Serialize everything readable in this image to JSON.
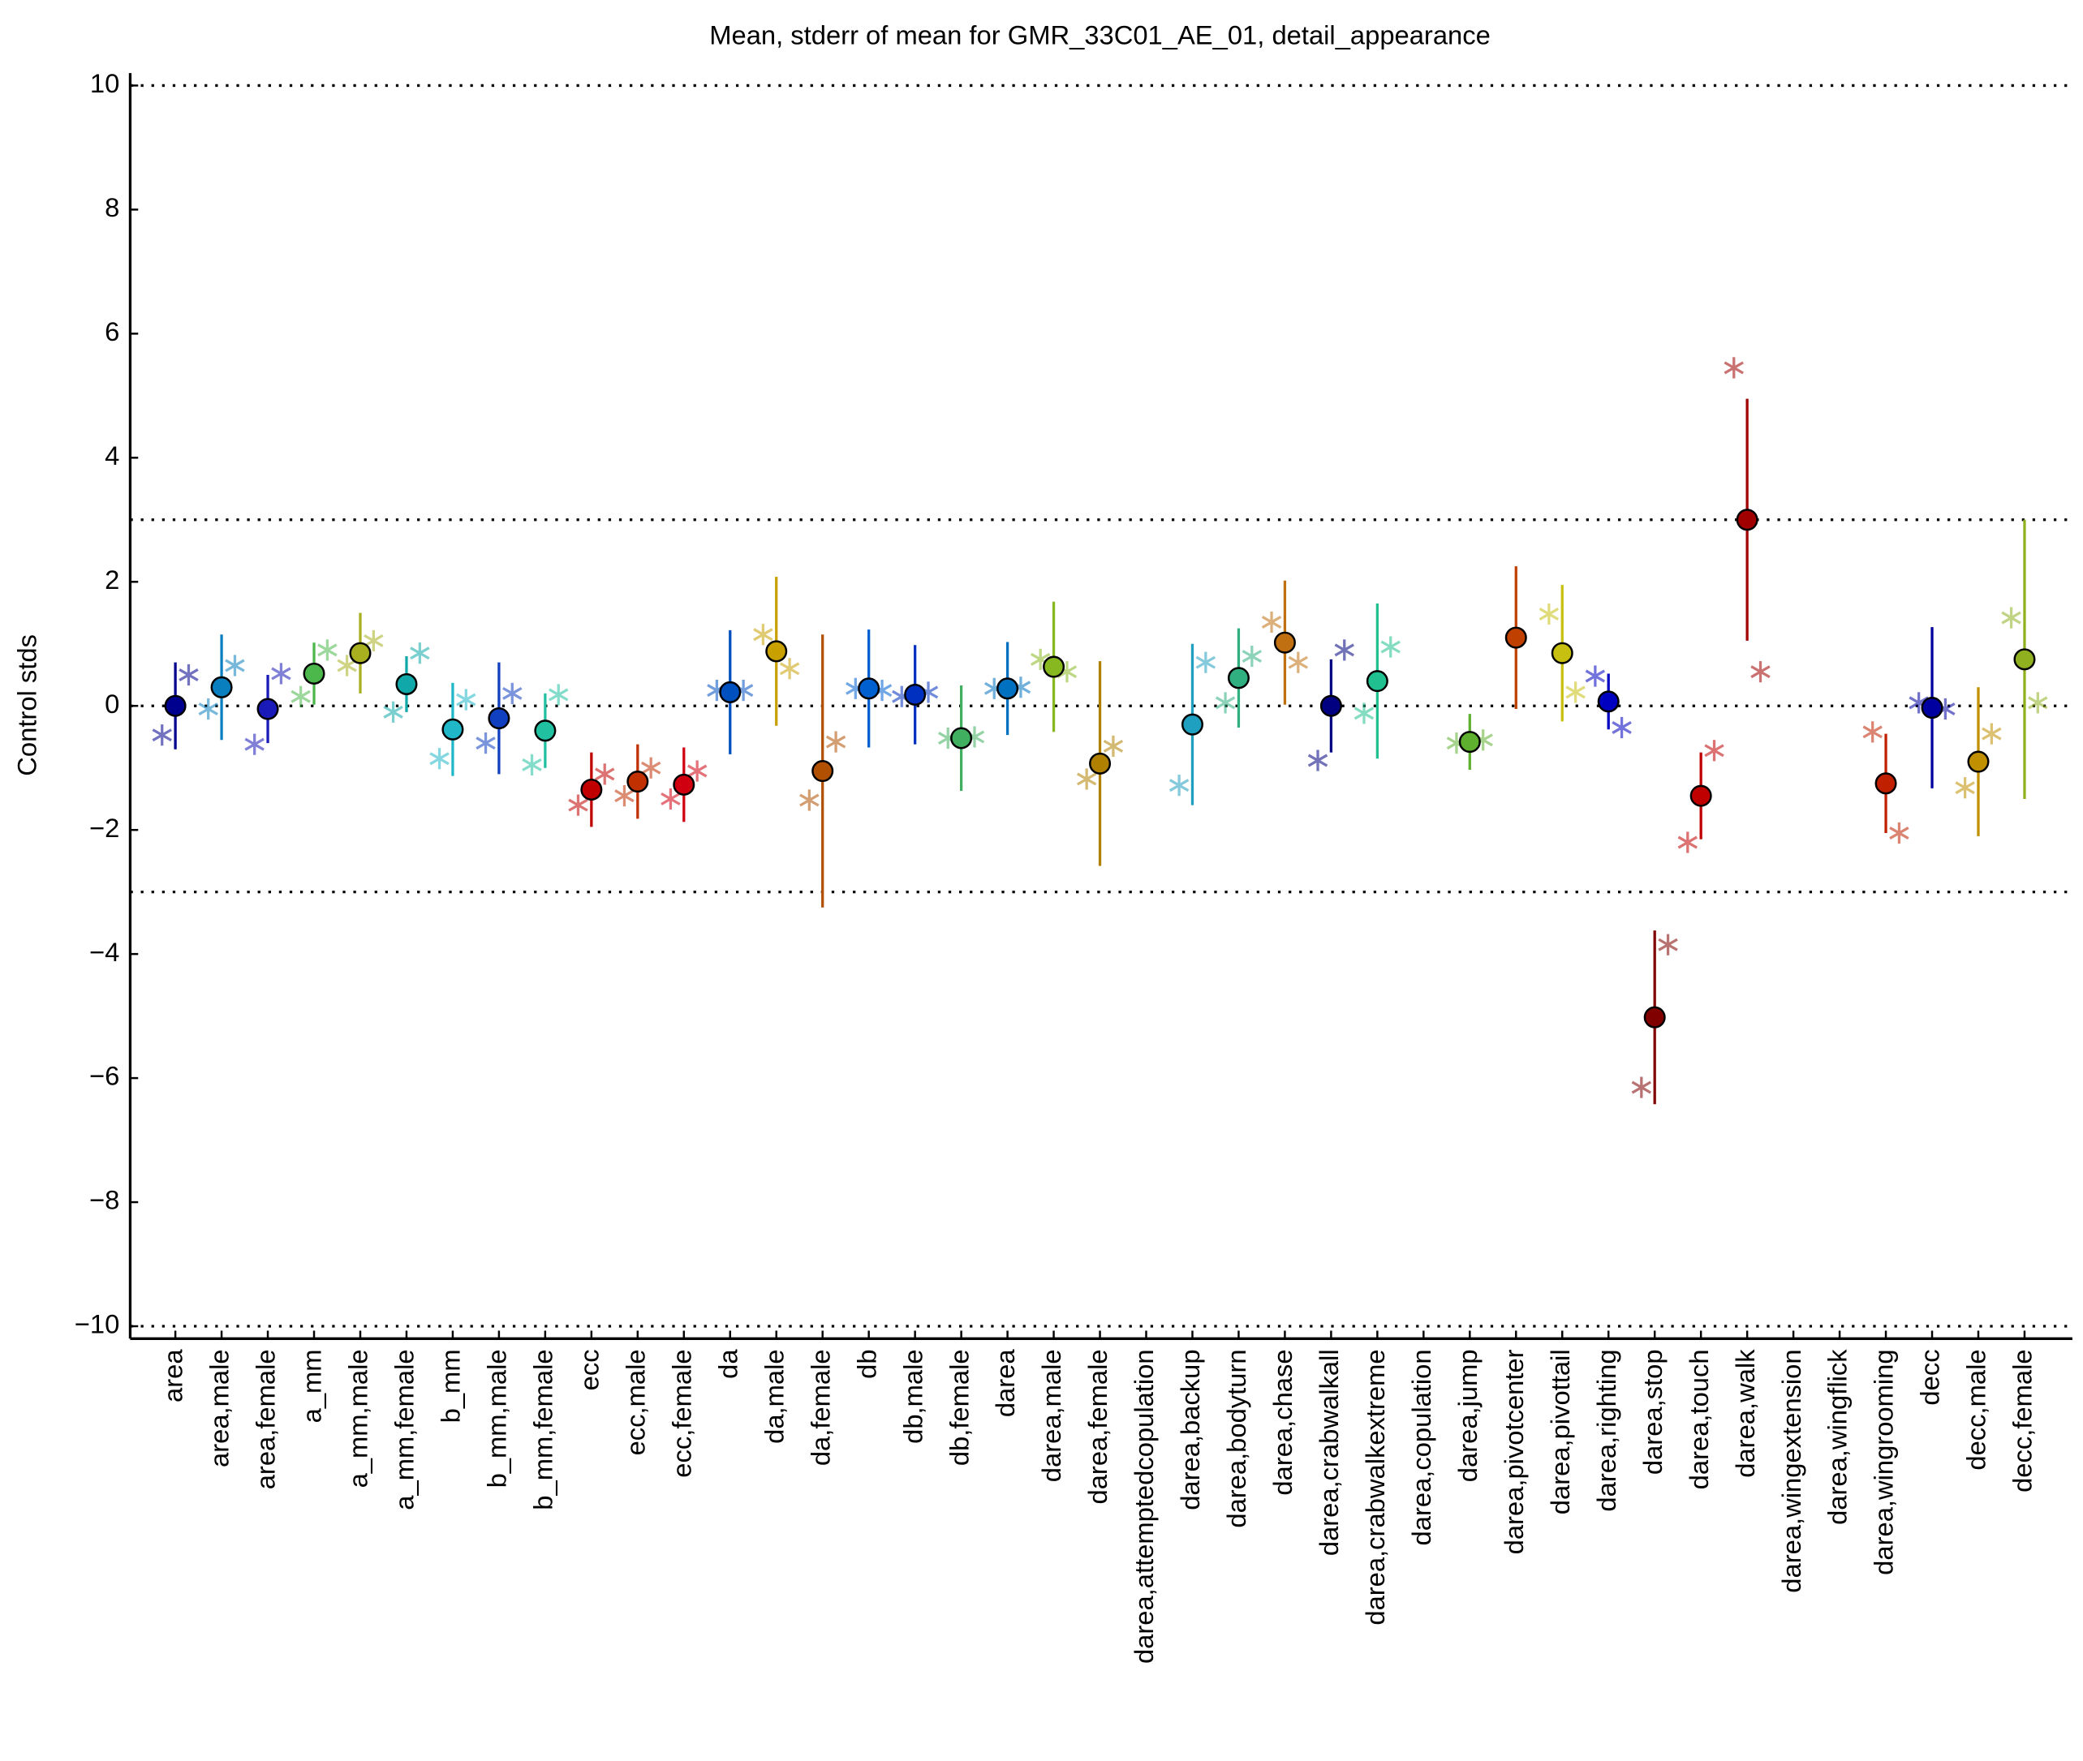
{
  "chart_data": {
    "type": "errorbar",
    "title": "Mean, stderr of mean for GMR_33C01_AE_01, detail_appearance",
    "ylabel": "Control stds",
    "categories": [
      "area",
      "area,male",
      "area,female",
      "a_mm",
      "a_mm,male",
      "a_mm,female",
      "b_mm",
      "b_mm,male",
      "b_mm,female",
      "ecc",
      "ecc,male",
      "ecc,female",
      "da",
      "da,male",
      "da,female",
      "db",
      "db,male",
      "db,female",
      "darea",
      "darea,male",
      "darea,female",
      "darea,attemptedcopulation",
      "darea,backup",
      "darea,bodyturn",
      "darea,chase",
      "darea,crabwalkall",
      "darea,crabwalkextreme",
      "darea,copulation",
      "darea,jump",
      "darea,pivotcenter",
      "darea,pivottail",
      "darea,righting",
      "darea,stop",
      "darea,touch",
      "darea,walk",
      "darea,wingextension",
      "darea,wingflick",
      "darea,wingrooming",
      "decc",
      "decc,male",
      "decc,female"
    ],
    "colors": [
      "#00008f",
      "#0a7fbf",
      "#1a1ab8",
      "#4cb84c",
      "#a8b020",
      "#10a8a8",
      "#20b8c8",
      "#1040c0",
      "#20c0a0",
      "#c00000",
      "#c03000",
      "#d00010",
      "#0050c0",
      "#c8a000",
      "#b05000",
      "#0060d0",
      "#0030c0",
      "#40b060",
      "#0070c0",
      "#88b820",
      "#b08000",
      "#909090",
      "#20a0c0",
      "#30b080",
      "#c07010",
      "#000080",
      "#20c090",
      "#909090",
      "#60b030",
      "#c04000",
      "#c8c010",
      "#0000c0",
      "#800000",
      "#c00000",
      "#a00000",
      "#909090",
      "#909090",
      "#c02000",
      "#0000a0",
      "#c09000",
      "#90b020"
    ],
    "values": [
      0,
      0.3,
      -0.05,
      0.52,
      0.85,
      0.35,
      -0.38,
      -0.2,
      -0.4,
      -1.35,
      -1.22,
      -1.27,
      0.22,
      0.88,
      -1.05,
      0.28,
      0.18,
      -0.52,
      0.28,
      0.63,
      -0.93,
      null,
      -0.3,
      0.45,
      1.02,
      0,
      0.4,
      null,
      -0.58,
      1.1,
      0.85,
      0.07,
      -5.02,
      -1.45,
      3.0,
      null,
      null,
      -1.25,
      -0.03,
      -0.9,
      0.75
    ],
    "errors": [
      0.7,
      0.85,
      0.55,
      0.5,
      0.65,
      0.45,
      0.75,
      0.9,
      0.6,
      0.6,
      0.6,
      0.6,
      1.0,
      1.2,
      2.2,
      0.95,
      0.8,
      0.85,
      0.75,
      1.05,
      1.65,
      null,
      1.3,
      0.8,
      1.0,
      0.75,
      1.25,
      null,
      0.45,
      1.15,
      1.1,
      0.45,
      1.4,
      0.7,
      1.95,
      null,
      null,
      0.8,
      1.3,
      1.2,
      2.25
    ],
    "left_values": [
      -0.47,
      -0.05,
      -0.62,
      0.15,
      0.65,
      -0.1,
      -0.85,
      -0.6,
      -0.95,
      -1.6,
      -1.45,
      -1.5,
      0.25,
      1.15,
      -1.52,
      0.28,
      0.15,
      -0.52,
      0.28,
      0.75,
      -1.18,
      null,
      -1.28,
      0.05,
      1.35,
      -0.88,
      -0.12,
      null,
      -0.6,
      null,
      1.48,
      0.48,
      -6.15,
      -2.2,
      5.45,
      null,
      null,
      -0.42,
      0.05,
      -1.32,
      1.42
    ],
    "right_values": [
      0.5,
      0.65,
      0.52,
      0.9,
      1.05,
      0.85,
      0.1,
      0.2,
      0.18,
      -1.1,
      -1.0,
      -1.05,
      0.25,
      0.6,
      -0.58,
      0.25,
      0.22,
      -0.5,
      0.3,
      0.55,
      -0.65,
      null,
      0.7,
      0.8,
      0.7,
      0.9,
      0.95,
      null,
      -0.55,
      null,
      0.22,
      -0.35,
      -3.85,
      -0.72,
      0.55,
      null,
      null,
      -2.05,
      -0.05,
      -0.45,
      0.05
    ],
    "ylim": [
      -10.2,
      10.2
    ],
    "yticks": [
      {
        "value": -10,
        "label": "−10"
      },
      {
        "value": -8,
        "label": "−8"
      },
      {
        "value": -6,
        "label": "−6"
      },
      {
        "value": -4,
        "label": "−4"
      },
      {
        "value": -2,
        "label": "−2"
      },
      0,
      2,
      4,
      6,
      8,
      10
    ],
    "reference_lines": [
      -10,
      -3,
      0,
      3,
      10
    ]
  }
}
